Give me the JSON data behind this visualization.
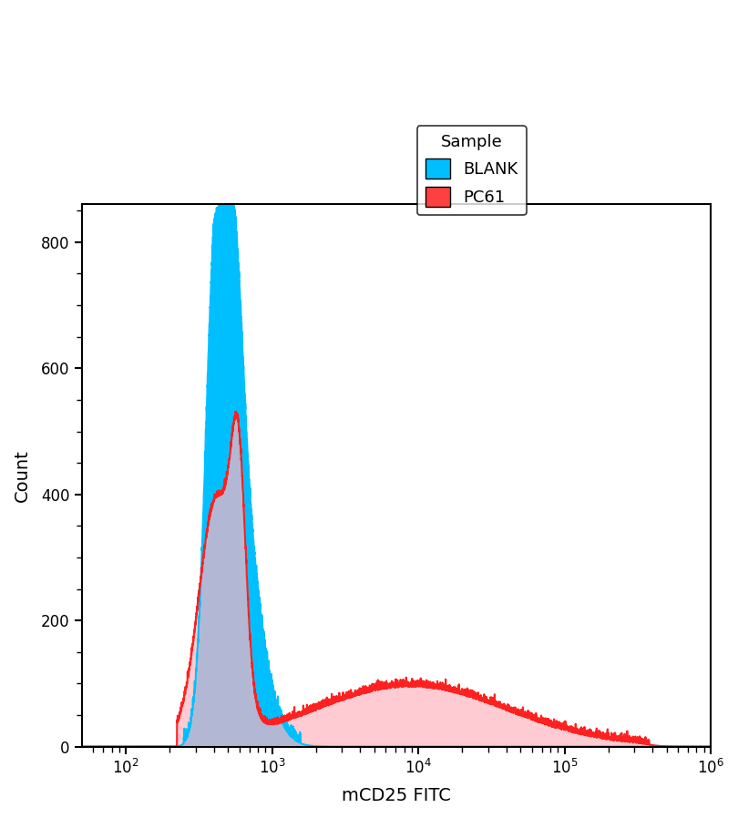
{
  "title": "",
  "xlabel": "mCD25 FITC",
  "ylabel": "Count",
  "xlim_log": [
    1.7,
    6.0
  ],
  "ylim": [
    0,
    860
  ],
  "yticks": [
    0,
    200,
    400,
    600,
    800
  ],
  "legend_title": "Sample",
  "legend_labels": [
    "BLANK",
    "PC61"
  ],
  "blank_fill_color": "#00BFFF",
  "blank_line_color": "#00BFFF",
  "pc61_fill_color": "#FFB6C1",
  "pc61_line_color": "#FF2020",
  "overlap_color": "#8899AA",
  "background_color": "#FFFFFF",
  "figsize": [
    8.1,
    8.98
  ],
  "dpi": 100,
  "blank_peak_log": 2.62,
  "blank_peak_count": 835,
  "pc61_peak_log": 3.85,
  "pc61_flat_count": 90
}
